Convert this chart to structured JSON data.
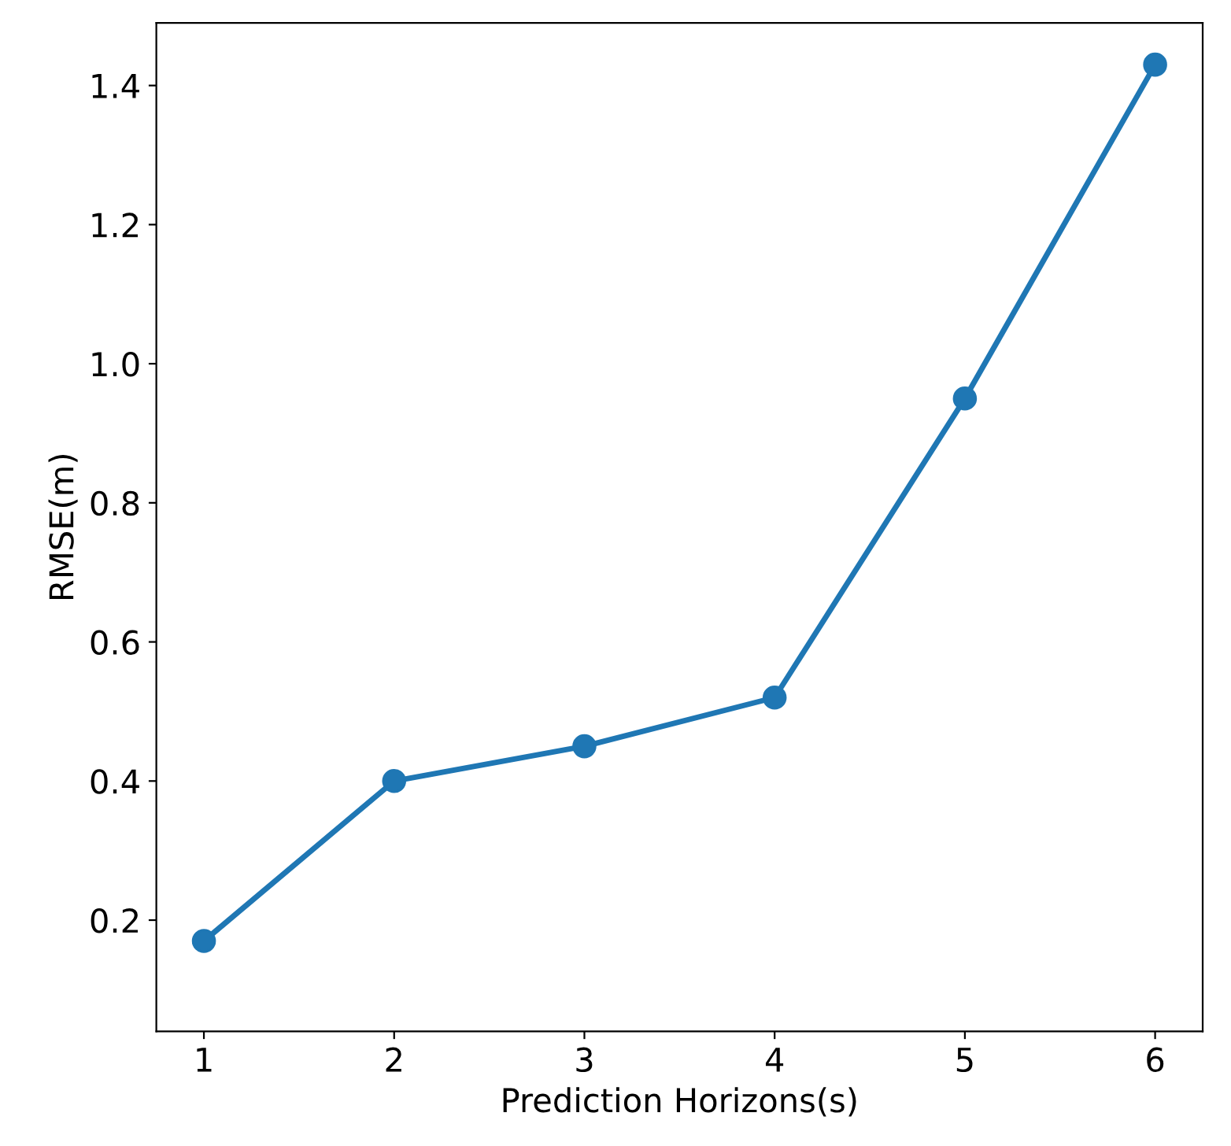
{
  "chart_data": {
    "type": "line",
    "xlabel": "Prediction Horizons(s)",
    "ylabel": "RMSE(m)",
    "x": [
      1,
      2,
      3,
      4,
      5,
      6
    ],
    "series": [
      {
        "color": "#1f77b4",
        "values": [
          0.17,
          0.4,
          0.45,
          0.52,
          0.95,
          1.43
        ]
      }
    ],
    "xlim": [
      0.75,
      6.25
    ],
    "xticks": [
      1,
      2,
      3,
      4,
      5,
      6
    ],
    "ylim": [
      0.04,
      1.49
    ],
    "yticks": [
      0.2,
      0.4,
      0.6,
      0.8,
      {
        "value": 1.0,
        "label": "1.0"
      },
      1.2,
      1.4
    ],
    "marker": "circle",
    "line_style": "solid",
    "grid": false,
    "legend": false
  }
}
